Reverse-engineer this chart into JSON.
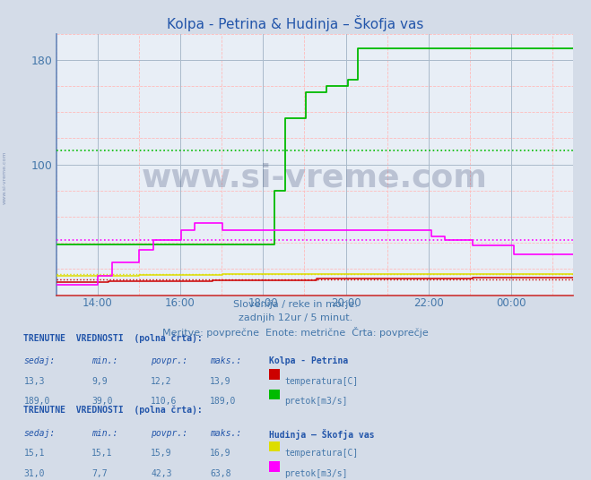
{
  "title": "Kolpa - Petrina & Hudinja – Škofja vas",
  "subtitle_lines": [
    "Slovenija / reke in morje.",
    "zadnjih 12ur / 5 minut.",
    "Meritve: povprečne  Enote: metrične  Črta: povprečje"
  ],
  "bg_color": "#d4dce8",
  "plot_bg_color": "#e8eef6",
  "kolpa_temp_color": "#cc0000",
  "kolpa_pretok_color": "#00bb00",
  "hudinja_temp_color": "#dddd00",
  "hudinja_pretok_color": "#ff00ff",
  "kolpa_temp_avg": 12.2,
  "kolpa_pretok_avg": 110.6,
  "hudinja_temp_avg": 15.9,
  "hudinja_pretok_avg": 42.3,
  "y_min": 0,
  "y_max": 200,
  "y_tick_positions": [
    100,
    180
  ],
  "table1_header": "TRENUTNE  VREDNOSTI  (polna črta):",
  "table1_station": "Kolpa - Petrina",
  "table1_col_headers": [
    "sedaj:",
    "min.:",
    "povpr.:",
    "maks.:"
  ],
  "table1_row1": [
    "13,3",
    "9,9",
    "12,2",
    "13,9",
    "temperatura[C]"
  ],
  "table1_row2": [
    "189,0",
    "39,0",
    "110,6",
    "189,0",
    "pretok[m3/s]"
  ],
  "table2_header": "TRENUTNE  VREDNOSTI  (polna črta):",
  "table2_station": "Hudinja – Škofja vas",
  "table2_col_headers": [
    "sedaj:",
    "min.:",
    "povpr.:",
    "maks.:"
  ],
  "table2_row1": [
    "15,1",
    "15,1",
    "15,9",
    "16,9",
    "temperatura[C]"
  ],
  "table2_row2": [
    "31,0",
    "7,7",
    "42,3",
    "63,8",
    "pretok[m3/s]"
  ],
  "text_color": "#4477aa",
  "text_color_bold": "#2255aa",
  "watermark_text": "www.si-vreme.com",
  "side_text": "www.si-vreme.com"
}
